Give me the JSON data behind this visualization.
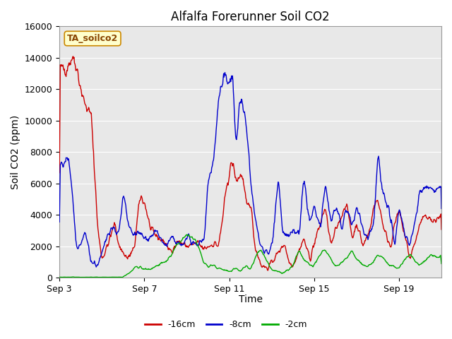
{
  "title": "Alfalfa Forerunner Soil CO2",
  "ylabel": "Soil CO2 (ppm)",
  "xlabel": "Time",
  "ylim": [
    0,
    16000
  ],
  "yticks": [
    0,
    2000,
    4000,
    6000,
    8000,
    10000,
    12000,
    14000,
    16000
  ],
  "xtick_labels": [
    "Sep 3",
    "Sep 7",
    "Sep 11",
    "Sep 15",
    "Sep 19"
  ],
  "xtick_positions": [
    0,
    4,
    8,
    12,
    16
  ],
  "xlim": [
    0,
    18
  ],
  "legend_label": "TA_soilco2",
  "line_labels": [
    "-16cm",
    "-8cm",
    "-2cm"
  ],
  "line_colors": [
    "#cc0000",
    "#0000cc",
    "#00aa00"
  ],
  "fig_bg_color": "#ffffff",
  "plot_bg_color": "#e8e8e8",
  "grid_color": "#ffffff",
  "title_fontsize": 12,
  "axis_label_fontsize": 10,
  "tick_fontsize": 9,
  "line_width": 1.0
}
